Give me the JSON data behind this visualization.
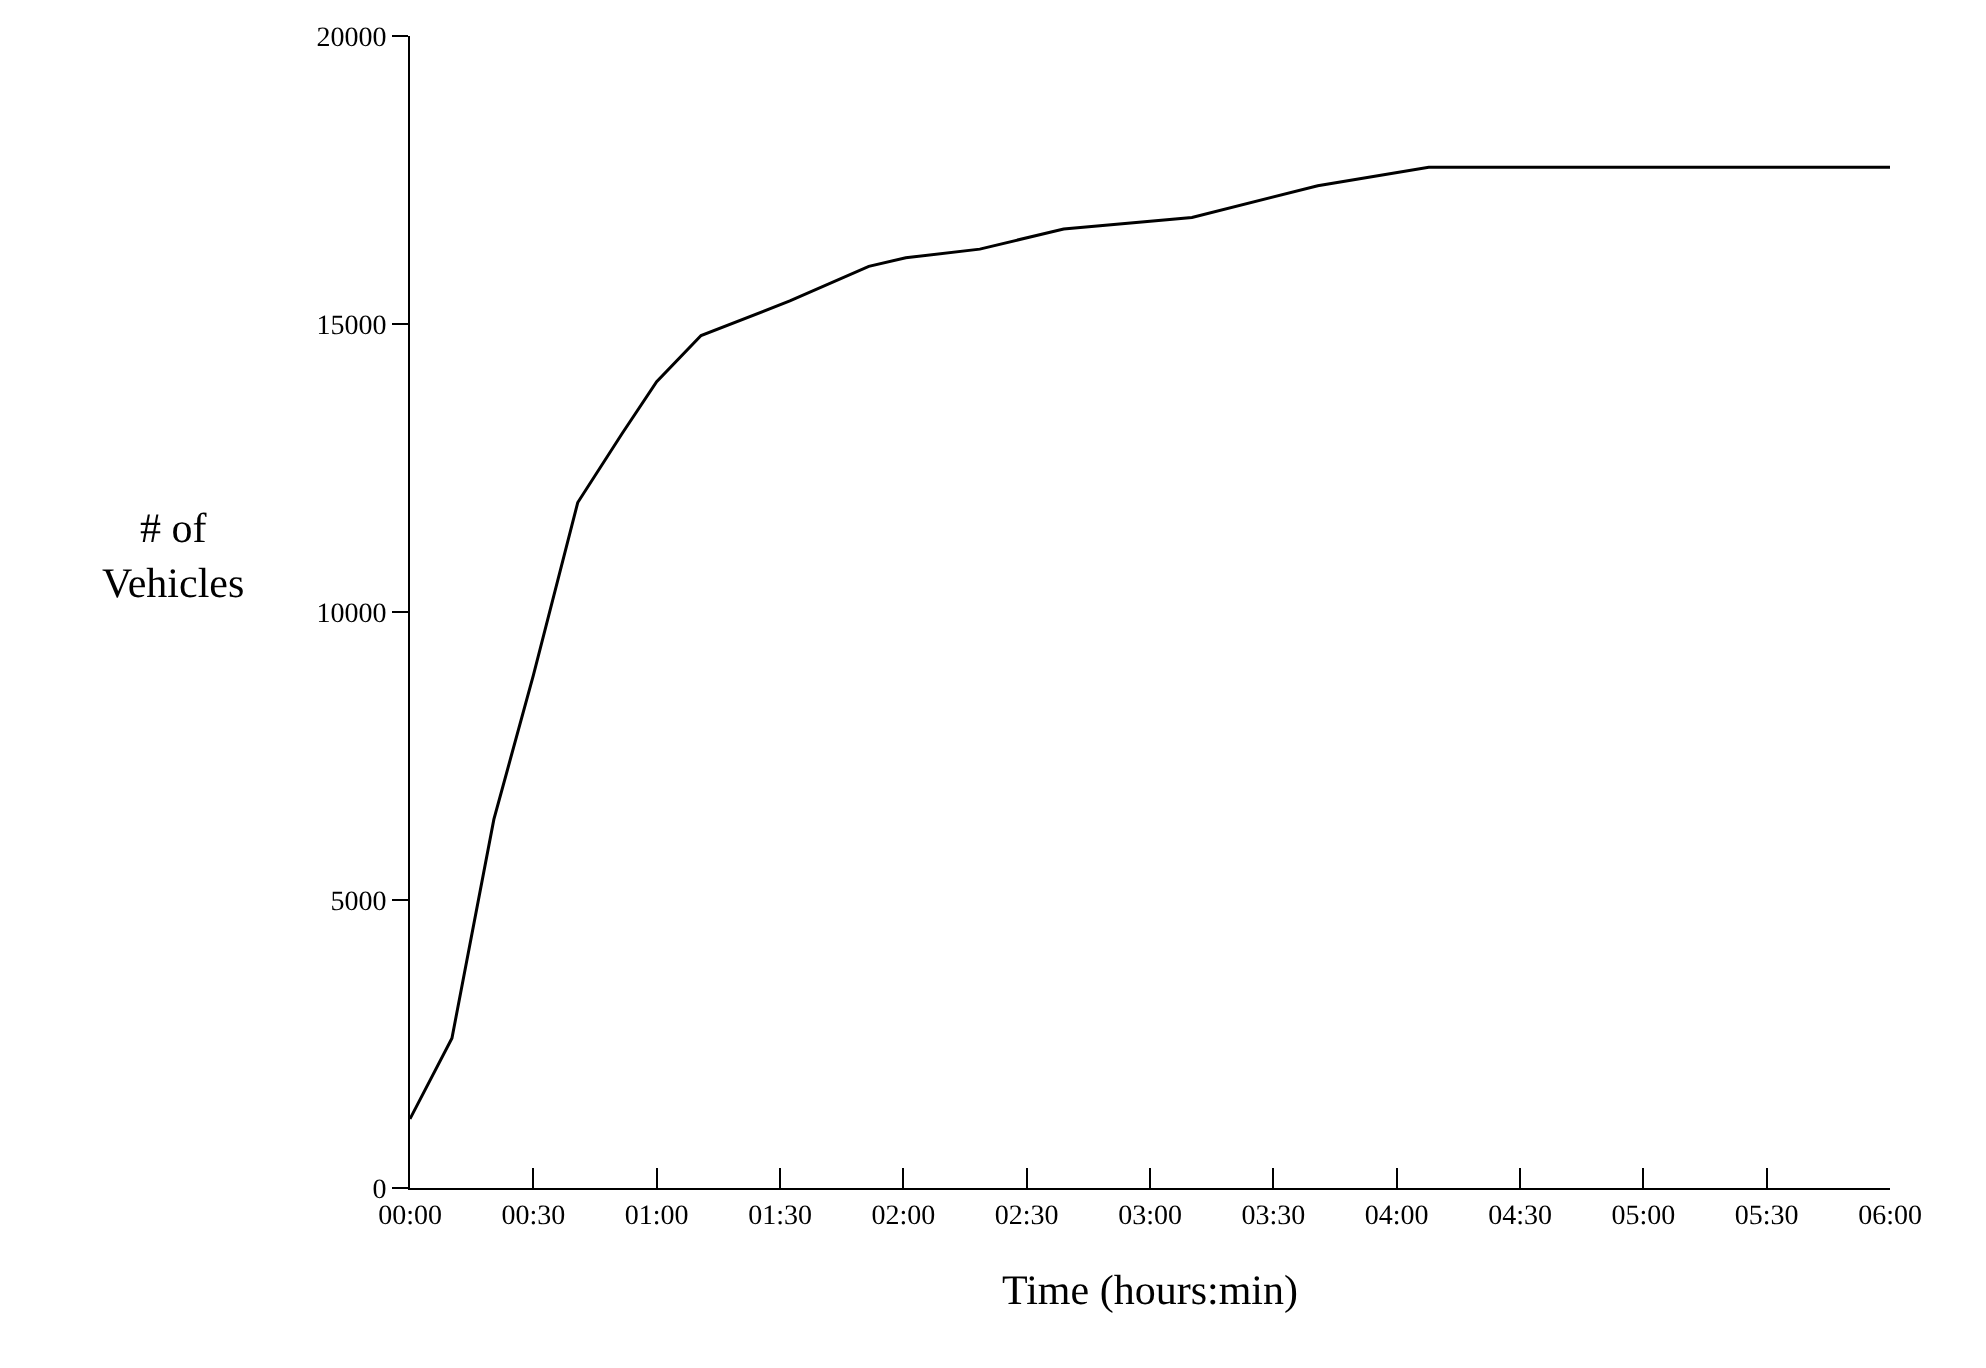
{
  "chart_data": {
    "type": "line",
    "xlabel": "Time (hours:min)",
    "ylabel": "# of\nVehicles",
    "x": [
      0,
      0.17,
      0.34,
      0.5,
      0.68,
      0.86,
      1.0,
      1.18,
      1.54,
      1.86,
      2.01,
      2.31,
      2.65,
      3.17,
      3.68,
      4.13,
      6.0
    ],
    "series": [
      {
        "color": "#000000",
        "values": [
          1200,
          2600,
          6400,
          8900,
          11900,
          13100,
          14000,
          14800,
          15400,
          16000,
          16150,
          16300,
          16650,
          16850,
          17400,
          17720,
          17720
        ]
      }
    ],
    "xlim": [
      0,
      6
    ],
    "ylim": [
      0,
      20000
    ],
    "xticks": [
      {
        "value": 0,
        "label": "00:00"
      },
      {
        "value": 0.5,
        "label": "00:30"
      },
      {
        "value": 1,
        "label": "01:00"
      },
      {
        "value": 1.5,
        "label": "01:30"
      },
      {
        "value": 2,
        "label": "02:00"
      },
      {
        "value": 2.5,
        "label": "02:30"
      },
      {
        "value": 3,
        "label": "03:00"
      },
      {
        "value": 3.5,
        "label": "03:30"
      },
      {
        "value": 4,
        "label": "04:00"
      },
      {
        "value": 4.5,
        "label": "04:30"
      },
      {
        "value": 5,
        "label": "05:00"
      },
      {
        "value": 5.5,
        "label": "05:30"
      },
      {
        "value": 6,
        "label": "06:00"
      }
    ],
    "yticks": [
      0,
      5000,
      10000,
      15000,
      20000
    ],
    "legend": false,
    "marker": "none",
    "line_style": "solid"
  }
}
